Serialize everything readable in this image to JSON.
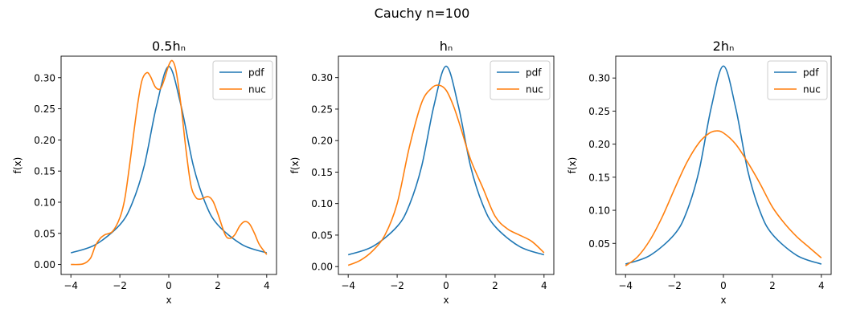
{
  "figure": {
    "suptitle": "Cauchy n=100"
  },
  "colors": {
    "pdf": "#1f77b4",
    "nuc": "#ff7f0e"
  },
  "chart_data": [
    {
      "type": "line",
      "title": "0.5hₙ",
      "xlabel": "x",
      "ylabel": "f(x)",
      "xlim": [
        -4.4,
        4.4
      ],
      "ylim": [
        -0.016,
        0.3345
      ],
      "xticks": [
        -4,
        -2,
        0,
        2,
        4
      ],
      "xtick_labels": [
        "−4",
        "−2",
        "0",
        "2",
        "4"
      ],
      "yticks": [
        0.0,
        0.05,
        0.1,
        0.15,
        0.2,
        0.25,
        0.3
      ],
      "ytick_labels": [
        "0.00",
        "0.05",
        "0.10",
        "0.15",
        "0.20",
        "0.25",
        "0.30"
      ],
      "legend": "upper right",
      "grid": false,
      "series": [
        {
          "name": "pdf",
          "x": [
            -4,
            -3,
            -2,
            -1.5,
            -1,
            -0.5,
            0,
            0.5,
            1,
            1.5,
            2,
            3,
            4
          ],
          "y": [
            0.0187,
            0.0318,
            0.0637,
            0.0979,
            0.159,
            0.255,
            0.318,
            0.255,
            0.159,
            0.0979,
            0.0637,
            0.0318,
            0.0187
          ]
        },
        {
          "name": "nuc",
          "x": [
            -4,
            -3.5,
            -3.2,
            -3,
            -2.8,
            -2.6,
            -2.3,
            -2,
            -1.8,
            -1.6,
            -1.3,
            -1.1,
            -0.9,
            -0.75,
            -0.55,
            -0.35,
            -0.2,
            0,
            0.15,
            0.3,
            0.5,
            0.7,
            0.9,
            1.1,
            1.3,
            1.6,
            1.8,
            2,
            2.3,
            2.5,
            2.7,
            2.9,
            3.1,
            3.3,
            3.5,
            3.7,
            4
          ],
          "y": [
            0.0,
            0.001,
            0.01,
            0.03,
            0.042,
            0.048,
            0.053,
            0.075,
            0.105,
            0.16,
            0.25,
            0.295,
            0.308,
            0.302,
            0.285,
            0.282,
            0.295,
            0.32,
            0.327,
            0.31,
            0.255,
            0.185,
            0.128,
            0.108,
            0.105,
            0.109,
            0.102,
            0.082,
            0.048,
            0.042,
            0.048,
            0.062,
            0.069,
            0.065,
            0.05,
            0.032,
            0.016
          ]
        }
      ]
    },
    {
      "type": "line",
      "title": "hₙ",
      "xlabel": "x",
      "ylabel": "f(x)",
      "xlim": [
        -4.4,
        4.4
      ],
      "ylim": [
        -0.0125,
        0.334
      ],
      "xticks": [
        -4,
        -2,
        0,
        2,
        4
      ],
      "xtick_labels": [
        "−4",
        "−2",
        "0",
        "2",
        "4"
      ],
      "yticks": [
        0.0,
        0.05,
        0.1,
        0.15,
        0.2,
        0.25,
        0.3
      ],
      "ytick_labels": [
        "0.00",
        "0.05",
        "0.10",
        "0.15",
        "0.20",
        "0.25",
        "0.30"
      ],
      "legend": "upper right",
      "grid": false,
      "series": [
        {
          "name": "pdf",
          "x": [
            -4,
            -3,
            -2,
            -1.5,
            -1,
            -0.5,
            0,
            0.5,
            1,
            1.5,
            2,
            3,
            4
          ],
          "y": [
            0.0187,
            0.0318,
            0.0637,
            0.0979,
            0.159,
            0.255,
            0.318,
            0.255,
            0.159,
            0.0979,
            0.0637,
            0.0318,
            0.0187
          ]
        },
        {
          "name": "nuc",
          "x": [
            -4,
            -3.5,
            -3,
            -2.5,
            -2,
            -1.5,
            -1,
            -0.6,
            -0.3,
            0,
            0.3,
            0.6,
            1,
            1.5,
            2,
            2.5,
            3,
            3.5,
            4
          ],
          "y": [
            0.002,
            0.01,
            0.025,
            0.05,
            0.1,
            0.19,
            0.26,
            0.283,
            0.288,
            0.28,
            0.255,
            0.22,
            0.17,
            0.125,
            0.08,
            0.06,
            0.05,
            0.04,
            0.022
          ]
        }
      ]
    },
    {
      "type": "line",
      "title": "2hₙ",
      "xlabel": "x",
      "ylabel": "f(x)",
      "xlim": [
        -4.4,
        4.4
      ],
      "ylim": [
        0.003,
        0.333
      ],
      "xticks": [
        -4,
        -2,
        0,
        2,
        4
      ],
      "xtick_labels": [
        "−4",
        "−2",
        "0",
        "2",
        "4"
      ],
      "yticks": [
        0.05,
        0.1,
        0.15,
        0.2,
        0.25,
        0.3
      ],
      "ytick_labels": [
        "0.05",
        "0.10",
        "0.15",
        "0.20",
        "0.25",
        "0.30"
      ],
      "legend": "upper right",
      "grid": false,
      "series": [
        {
          "name": "pdf",
          "x": [
            -4,
            -3,
            -2,
            -1.5,
            -1,
            -0.5,
            0,
            0.5,
            1,
            1.5,
            2,
            3,
            4
          ],
          "y": [
            0.0187,
            0.0318,
            0.0637,
            0.0979,
            0.159,
            0.255,
            0.318,
            0.255,
            0.159,
            0.0979,
            0.0637,
            0.0318,
            0.0187
          ]
        },
        {
          "name": "nuc",
          "x": [
            -4,
            -3.5,
            -3,
            -2.5,
            -2,
            -1.5,
            -1,
            -0.6,
            -0.3,
            0,
            0.5,
            1,
            1.5,
            2,
            2.5,
            3,
            3.5,
            4
          ],
          "y": [
            0.016,
            0.03,
            0.055,
            0.09,
            0.132,
            0.172,
            0.202,
            0.216,
            0.22,
            0.217,
            0.2,
            0.172,
            0.14,
            0.105,
            0.08,
            0.06,
            0.044,
            0.028
          ]
        }
      ]
    }
  ]
}
